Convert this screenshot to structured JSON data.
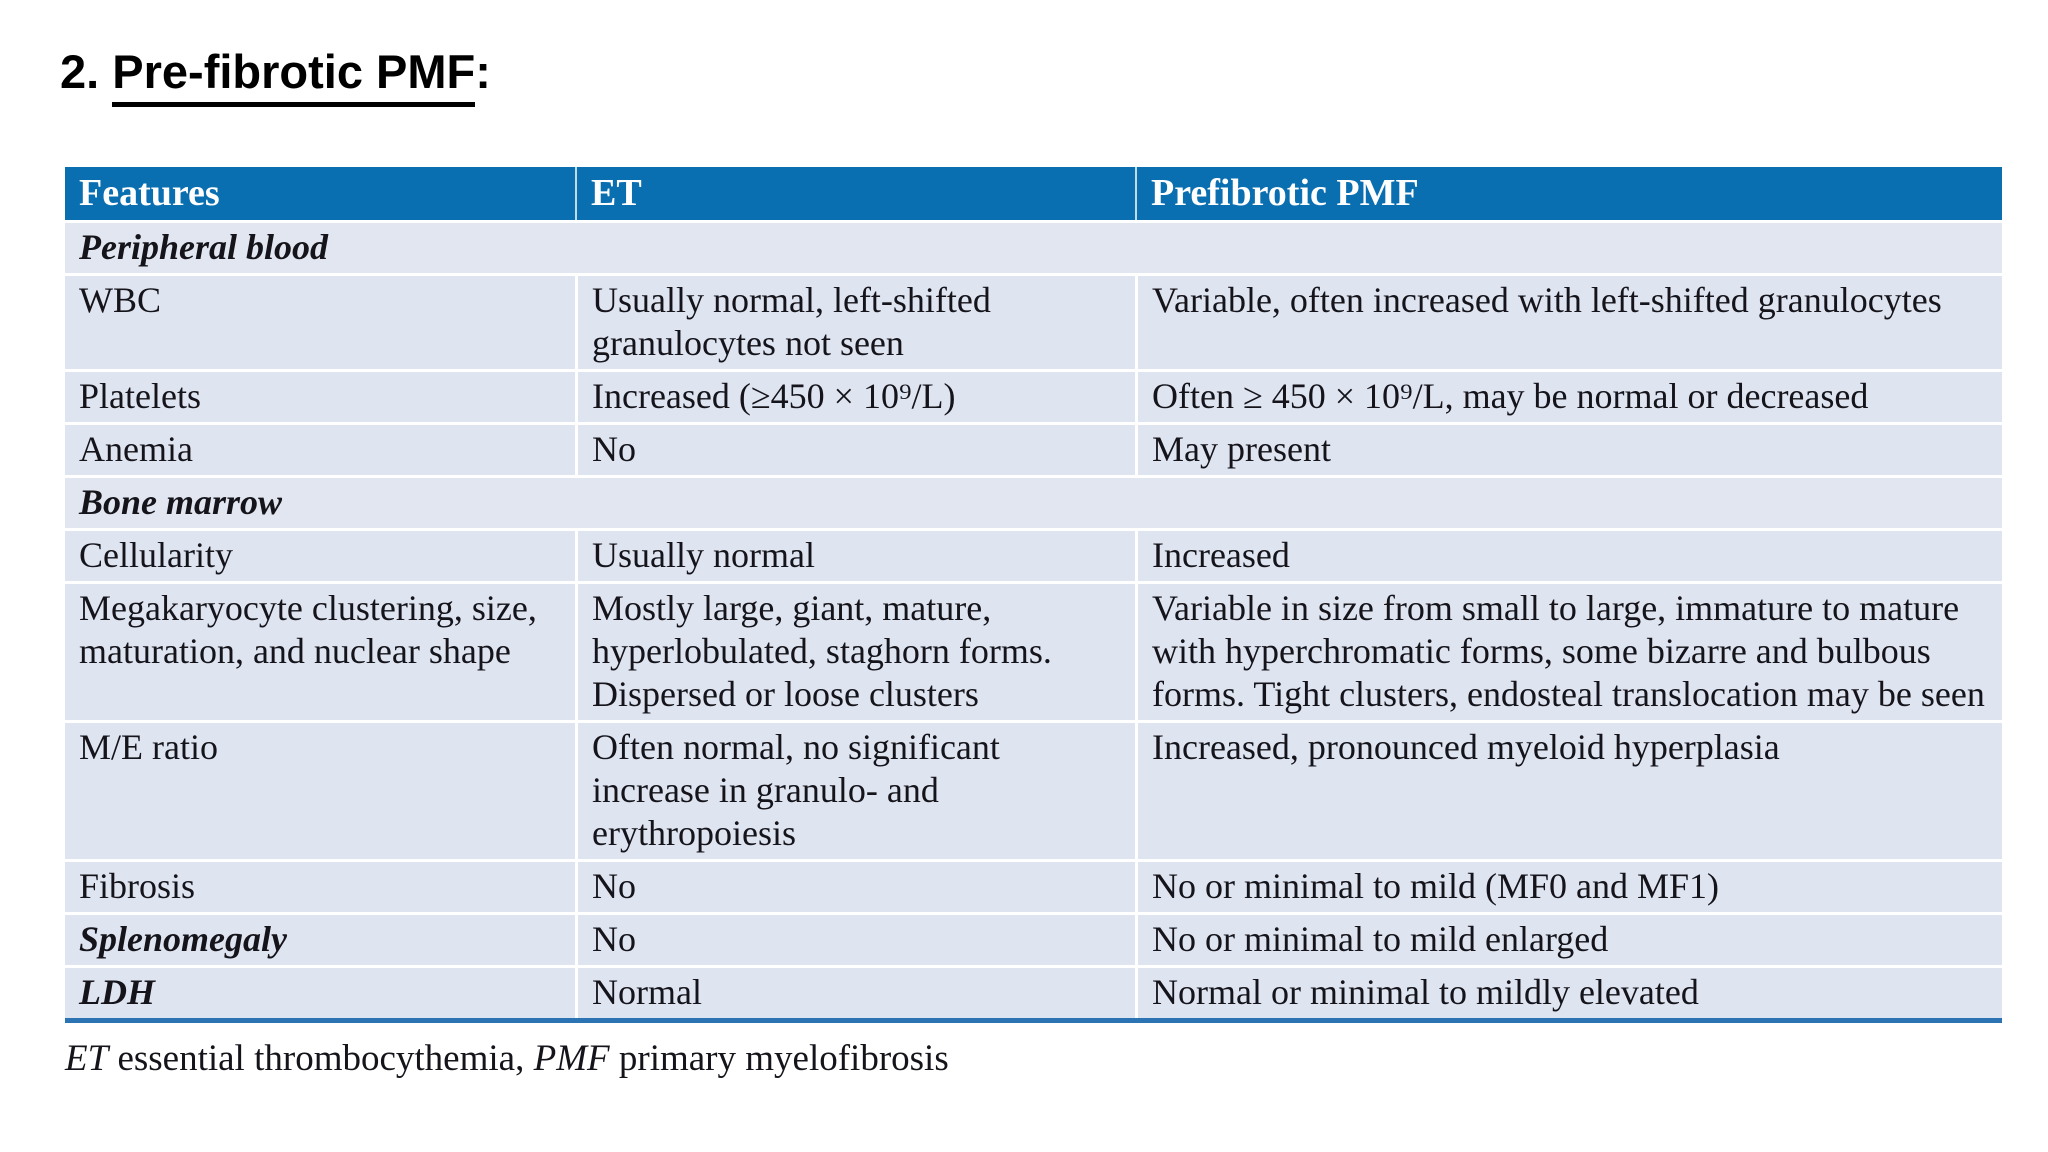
{
  "title": {
    "number": "2. ",
    "main": "Pre-fibrotic PMF",
    "suffix": ":"
  },
  "table": {
    "headers": {
      "features": "Features",
      "et": "ET",
      "pmf": "Prefibrotic PMF"
    },
    "rows": [
      {
        "kind": "section",
        "feature": "Peripheral blood"
      },
      {
        "kind": "data",
        "feature": "WBC",
        "et": "Usually normal, left-shifted granulocytes not seen",
        "pmf": "Variable, often increased with left-shifted granulocytes"
      },
      {
        "kind": "data",
        "feature": "Platelets",
        "et": "Increased (≥450 × 10⁹/L)",
        "pmf": "Often ≥ 450 × 10⁹/L, may be normal or decreased"
      },
      {
        "kind": "data",
        "feature": "Anemia",
        "et": "No",
        "pmf": "May present"
      },
      {
        "kind": "section",
        "feature": "Bone marrow"
      },
      {
        "kind": "data",
        "feature": "Cellularity",
        "et": "Usually normal",
        "pmf": "Increased"
      },
      {
        "kind": "data",
        "feature": "Megakaryocyte clustering, size, maturation, and nuclear shape",
        "et": "Mostly large, giant, mature, hyperlobulated, staghorn forms. Dispersed or loose clusters",
        "pmf": "Variable in size from small to large, immature to mature with hyperchromatic forms, some bizarre and bulbous forms. Tight clusters, endosteal translocation may be seen"
      },
      {
        "kind": "data",
        "feature": "M/E ratio",
        "et": "Often normal, no significant increase in granulo- and erythropoiesis",
        "pmf": "Increased, pronounced myeloid hyperplasia"
      },
      {
        "kind": "data",
        "feature": "Fibrosis",
        "et": "No",
        "pmf": "No or minimal to mild (MF0 and MF1)"
      },
      {
        "kind": "emphasis",
        "feature": "Splenomegaly",
        "et": "No",
        "pmf": "No or minimal to mild enlarged"
      },
      {
        "kind": "emphasis",
        "feature": "LDH",
        "et": "Normal",
        "pmf": "Normal or minimal to mildly elevated"
      }
    ]
  },
  "footnote": {
    "et_abbr": "ET",
    "et_text": " essential thrombocythemia, ",
    "pmf_abbr": "PMF",
    "pmf_text": " primary myelofibrosis"
  },
  "colors": {
    "header_bg": "#0a6fb1",
    "row_bg": "#dfe4f1",
    "section_row_bg": "#e2e6f0",
    "bottom_border": "#2c73b4",
    "header_text": "#ffffff",
    "body_text": "#14141a",
    "title_text": "#000000"
  }
}
